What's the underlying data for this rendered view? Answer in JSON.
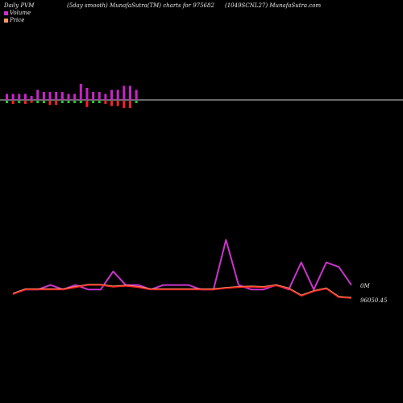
{
  "header": {
    "left": "Daily PVM",
    "middle": "(5day smooth) MunafaSutra(TM) charts for 975682",
    "right": "(1049SCNL27) MunafaSutra.com"
  },
  "legend": {
    "volume": {
      "label": "Volume",
      "color": "#cc33cc"
    },
    "price": {
      "label": "Price",
      "color": "#ff9966"
    }
  },
  "chart_data": {
    "type": "bar+line",
    "labels": {
      "volume_now": "0M",
      "price_now": "96050.45"
    },
    "volume_bars": {
      "values": [
        3,
        3,
        3,
        3,
        2,
        5,
        4,
        4,
        4,
        4,
        3,
        3,
        8,
        6,
        4,
        4,
        3,
        5,
        5,
        7,
        7,
        5
      ],
      "direction": [
        "up",
        "down",
        "up",
        "down",
        "down",
        "up",
        "up",
        "down",
        "down",
        "up",
        "up",
        "up",
        "up",
        "down",
        "up",
        "up",
        "down",
        "down",
        "down",
        "down",
        "down",
        "up"
      ]
    },
    "series": [
      {
        "name": "Volume",
        "color": "#cc33cc",
        "values": [
          2,
          3,
          3,
          4,
          3,
          4,
          3,
          3,
          7,
          4,
          4,
          3,
          4,
          4,
          4,
          3,
          3,
          14,
          4,
          3,
          3,
          4,
          3,
          9,
          3,
          9,
          8,
          4
        ]
      },
      {
        "name": "Price",
        "color": "#ff2222",
        "values": [
          2,
          3,
          3,
          3,
          3,
          3.5,
          4,
          4,
          3.6,
          3.8,
          3.5,
          3,
          3,
          3,
          3,
          3,
          3,
          3.3,
          3.5,
          3.6,
          3.5,
          3.9,
          3.2,
          1.6,
          2.6,
          3.2,
          1.3,
          1.1
        ]
      }
    ]
  }
}
